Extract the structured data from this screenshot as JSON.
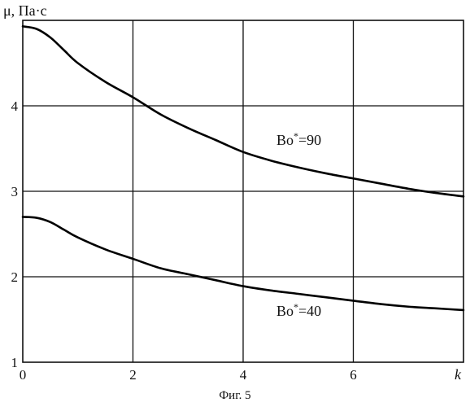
{
  "chart_data": {
    "type": "line",
    "title": "",
    "ylabel": "μ, Па·с",
    "xlabel": "k",
    "caption": "Фиг. 5",
    "xlim": [
      0,
      8
    ],
    "ylim": [
      1,
      5
    ],
    "x_ticks": [
      "0",
      "2",
      "4",
      "6"
    ],
    "y_ticks": [
      "1",
      "2",
      "3",
      "4"
    ],
    "grid": true,
    "series": [
      {
        "name": "Bo*=90",
        "label_base": "Bo",
        "label_sup": "*",
        "label_suffix": "=90",
        "x": [
          0,
          0.25,
          0.5,
          0.75,
          1.0,
          1.5,
          2.0,
          2.5,
          3.0,
          3.5,
          4.0,
          4.5,
          5.0,
          5.5,
          6.0,
          6.5,
          7.0,
          7.5,
          8.0
        ],
        "y": [
          4.93,
          4.9,
          4.8,
          4.65,
          4.5,
          4.28,
          4.1,
          3.9,
          3.74,
          3.6,
          3.46,
          3.36,
          3.28,
          3.21,
          3.15,
          3.09,
          3.03,
          2.98,
          2.94
        ]
      },
      {
        "name": "Bo*=40",
        "label_base": "Bo",
        "label_sup": "*",
        "label_suffix": "=40",
        "x": [
          0,
          0.25,
          0.5,
          0.75,
          1.0,
          1.5,
          2.0,
          2.5,
          3.0,
          3.5,
          4.0,
          4.5,
          5.0,
          5.5,
          6.0,
          6.5,
          7.0,
          7.5,
          8.0
        ],
        "y": [
          2.7,
          2.69,
          2.64,
          2.55,
          2.46,
          2.32,
          2.21,
          2.1,
          2.03,
          1.96,
          1.89,
          1.84,
          1.8,
          1.76,
          1.72,
          1.68,
          1.65,
          1.63,
          1.61
        ]
      }
    ]
  },
  "colors": {
    "ink": "#000000",
    "background": "#ffffff"
  }
}
